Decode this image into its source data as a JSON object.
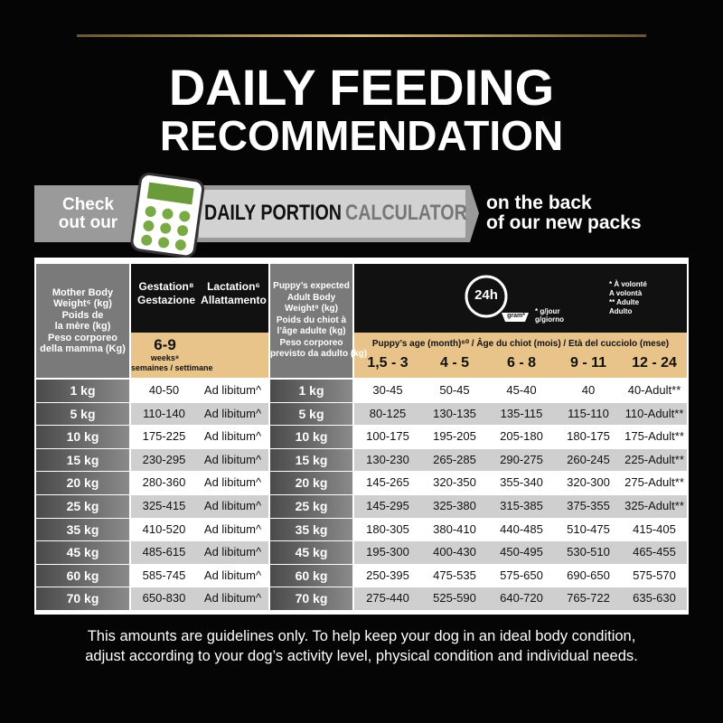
{
  "header": {
    "title": [
      "DAILY FEEDING",
      "RECOMMENDATION"
    ]
  },
  "banner": {
    "check": [
      "Check",
      "out our"
    ],
    "label_1": "DAILY PORTION",
    "label_2": "CALCULATOR",
    "side": [
      "on the back",
      "of our new packs"
    ]
  },
  "table": {
    "mother_header": [
      "Mother Body",
      "Weight⁶ (kg)",
      "Poids de",
      "la mère (kg)",
      "Peso corporeo",
      "della mamma (Kg)"
    ],
    "gestation_header": [
      "Gestation⁸",
      "Gestazione"
    ],
    "lactation_header": [
      "Lactation⁶",
      "Allattamento"
    ],
    "weeks": [
      "6-9",
      "weeks⁸",
      "semaines / settimane"
    ],
    "puppy_header": [
      "Puppy’s expected",
      "Adult  Body",
      "Weight⁸ (kg)",
      "Poids du chiot à",
      "l’âge adulte (kg)",
      "Peso corporeo",
      "previsto da adulto (kg)"
    ],
    "icon_24h": "24h",
    "icon_gram": "gram*",
    "icon_note": [
      "* g/jour",
      "g/giorno"
    ],
    "legend": [
      "* À volonté",
      "A volontà",
      "** Adulte",
      "Adulto"
    ],
    "age_header": "Puppy’s age (month)⁶⁰ / Âge du chiot (mois) / Età del cucciolo (mese)",
    "age_columns": [
      "1,5 - 3",
      "4 - 5",
      "6 - 8",
      "9 - 11",
      "12 - 24"
    ],
    "rows": [
      [
        "1 kg",
        "40-50",
        "Ad libitum^",
        "1 kg",
        "30-45",
        "50-45",
        "45-40",
        "40",
        "40-Adult**"
      ],
      [
        "5 kg",
        "110-140",
        "Ad libitum^",
        "5 kg",
        "80-125",
        "130-135",
        "135-115",
        "115-110",
        "110-Adult**"
      ],
      [
        "10 kg",
        "175-225",
        "Ad libitum^",
        "10 kg",
        "100-175",
        "195-205",
        "205-180",
        "180-175",
        "175-Adult**"
      ],
      [
        "15 kg",
        "230-295",
        "Ad libitum^",
        "15 kg",
        "130-230",
        "265-285",
        "290-275",
        "260-245",
        "225-Adult**"
      ],
      [
        "20 kg",
        "280-360",
        "Ad libitum^",
        "20 kg",
        "145-265",
        "320-350",
        "355-340",
        "320-300",
        "275-Adult**"
      ],
      [
        "25 kg",
        "325-415",
        "Ad libitum^",
        "25 kg",
        "145-295",
        "325-380",
        "315-385",
        "375-355",
        "325-Adult**"
      ],
      [
        "35 kg",
        "410-520",
        "Ad libitum^",
        "35 kg",
        "180-305",
        "380-410",
        "440-485",
        "510-475",
        "415-405"
      ],
      [
        "45 kg",
        "485-615",
        "Ad libitum^",
        "45 kg",
        "195-300",
        "400-430",
        "450-495",
        "530-510",
        "465-455"
      ],
      [
        "60 kg",
        "585-745",
        "Ad libitum^",
        "60 kg",
        "250-395",
        "475-535",
        "575-650",
        "690-650",
        "575-570"
      ],
      [
        "70 kg",
        "650-830",
        "Ad libitum^",
        "70 kg",
        "275-440",
        "525-590",
        "640-720",
        "765-722",
        "635-630"
      ]
    ]
  },
  "footer": [
    "This amounts are guidelines only. To help keep your dog in an ideal body condition,",
    "adjust according to your dog’s activity level, physical condition and individual needs."
  ]
}
